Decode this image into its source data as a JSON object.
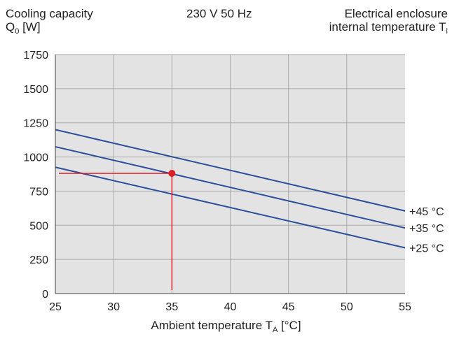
{
  "chart_data": {
    "type": "line",
    "title": "230 V 50 Hz",
    "ylabel_line1": "Cooling capacity",
    "ylabel_line2": "Q",
    "ylabel_sub": "0",
    "ylabel_unit": " [W]",
    "legend_title_line1": "Electrical enclosure",
    "legend_title_line2": "internal temperature T",
    "legend_title_sub": "i",
    "xlabel": "Ambient temperature T",
    "xlabel_sub": "A",
    "xlabel_unit": " [°C]",
    "xlim": [
      25,
      55
    ],
    "ylim": [
      0,
      1750
    ],
    "xticks": [
      25,
      30,
      35,
      40,
      45,
      50,
      55
    ],
    "yticks": [
      0,
      250,
      500,
      750,
      1000,
      1250,
      1500,
      1750
    ],
    "grid": true,
    "series": [
      {
        "name": "+45 °C",
        "x": [
          25,
          55
        ],
        "y": [
          1200,
          605
        ]
      },
      {
        "name": "+35 °C",
        "x": [
          25,
          55
        ],
        "y": [
          1075,
          480
        ]
      },
      {
        "name": "+25 °C",
        "x": [
          25,
          55
        ],
        "y": [
          925,
          335
        ]
      }
    ],
    "operating_point": {
      "x": 35,
      "y": 880
    },
    "colors": {
      "series": "#2b4f9a",
      "operating_point": "#dd1e26",
      "grid": "#aaaaaa",
      "axis": "#666666"
    }
  }
}
